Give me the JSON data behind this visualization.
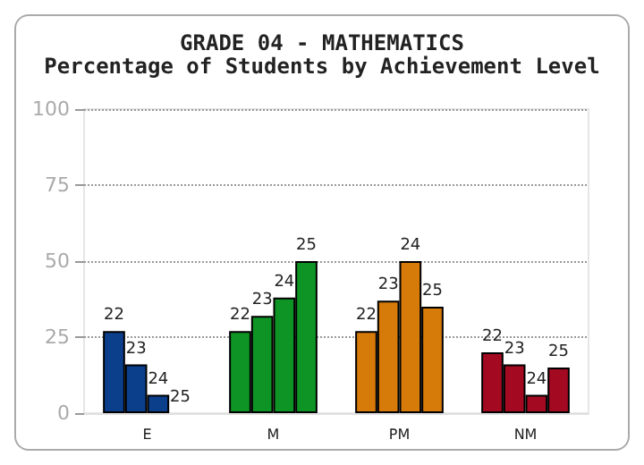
{
  "chart_data": {
    "type": "bar",
    "title": "GRADE 04 - MATHEMATICS",
    "subtitle": "Percentage of Students by Achievement Level",
    "categories": [
      "E",
      "M",
      "PM",
      "NM"
    ],
    "series": [
      {
        "name": "22",
        "colors": [
          "#0b3f8c",
          "#0e9425",
          "#d67a09",
          "#a30a22"
        ],
        "values": [
          27,
          27,
          27,
          20
        ]
      },
      {
        "name": "23",
        "colors": [
          "#0b3f8c",
          "#0e9425",
          "#d67a09",
          "#a30a22"
        ],
        "values": [
          16,
          32,
          37,
          16
        ]
      },
      {
        "name": "24",
        "colors": [
          "#0b3f8c",
          "#0e9425",
          "#d67a09",
          "#a30a22"
        ],
        "values": [
          6,
          38,
          50,
          6
        ]
      },
      {
        "name": "25",
        "colors": [
          "#0b3f8c",
          "#0e9425",
          "#d67a09",
          "#a30a22"
        ],
        "values": [
          0,
          50,
          35,
          15
        ]
      }
    ],
    "ylim": [
      0,
      100
    ],
    "yticks": [
      0,
      25,
      50,
      75,
      100
    ],
    "grid": "y",
    "legend": false
  }
}
